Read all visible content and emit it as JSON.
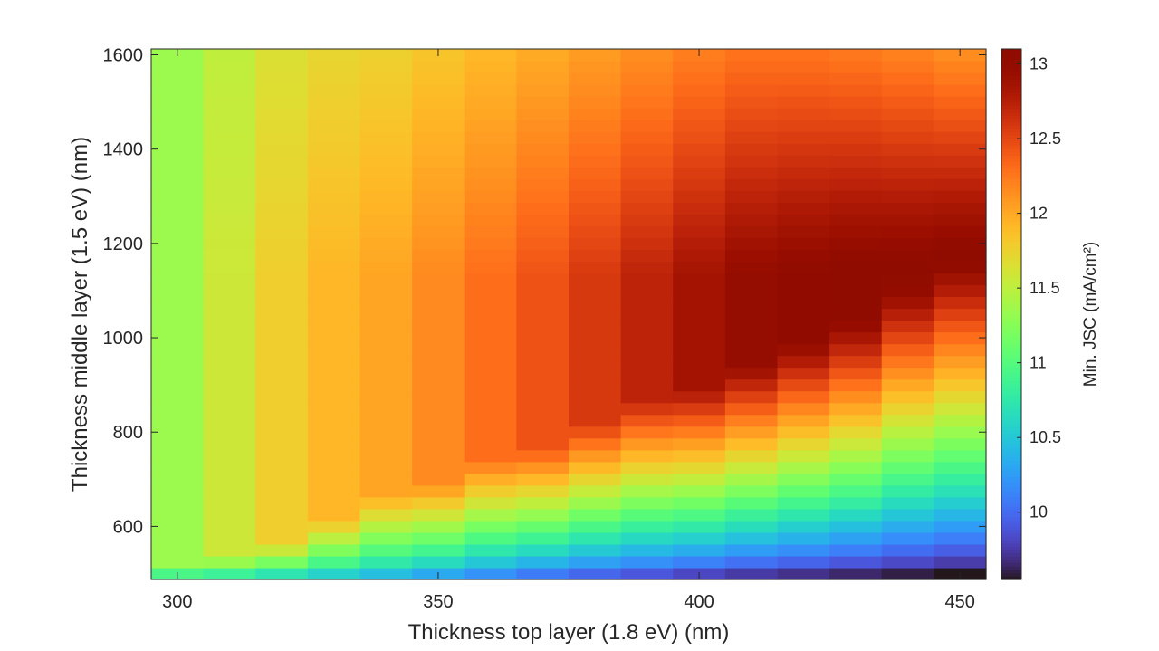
{
  "chart_data": {
    "type": "heatmap",
    "xlabel": "Thickness top layer (1.8 eV) (nm)",
    "ylabel": "Thickness middle layer (1.5 eV) (nm)",
    "colorbar_label": "Min. JSC (mA/cm²)",
    "colormap": "turbo",
    "x_start": 300,
    "x_step": 10,
    "x_count": 16,
    "y_start": 500,
    "y_step": 25,
    "y_count": 45,
    "xlim": [
      295,
      455
    ],
    "ylim": [
      487.5,
      1612.5
    ],
    "clim": [
      9.55,
      13.1
    ],
    "xticks": [
      300,
      350,
      400,
      450
    ],
    "yticks": [
      600,
      800,
      1000,
      1200,
      1400,
      1600
    ],
    "cticks": [
      10,
      10.5,
      11,
      11.5,
      12,
      12.5,
      13
    ],
    "grid": false,
    "plateau_values": [
      11.35,
      11.58,
      11.78,
      11.92,
      12.02,
      12.16,
      12.3,
      12.44,
      12.58,
      12.72,
      12.86,
      12.98,
      13.04,
      13.08,
      13.1,
      13.1
    ],
    "boundary_thickness_nm": [
      512,
      537,
      562,
      612,
      662,
      687,
      737,
      762,
      812,
      862,
      887,
      937,
      987,
      1037,
      1112,
      1162
    ],
    "bottom_edge_values": [
      10.95,
      10.85,
      10.72,
      10.58,
      10.45,
      10.32,
      10.2,
      10.08,
      9.98,
      9.9,
      9.82,
      9.75,
      9.7,
      9.65,
      9.6,
      9.55
    ]
  }
}
